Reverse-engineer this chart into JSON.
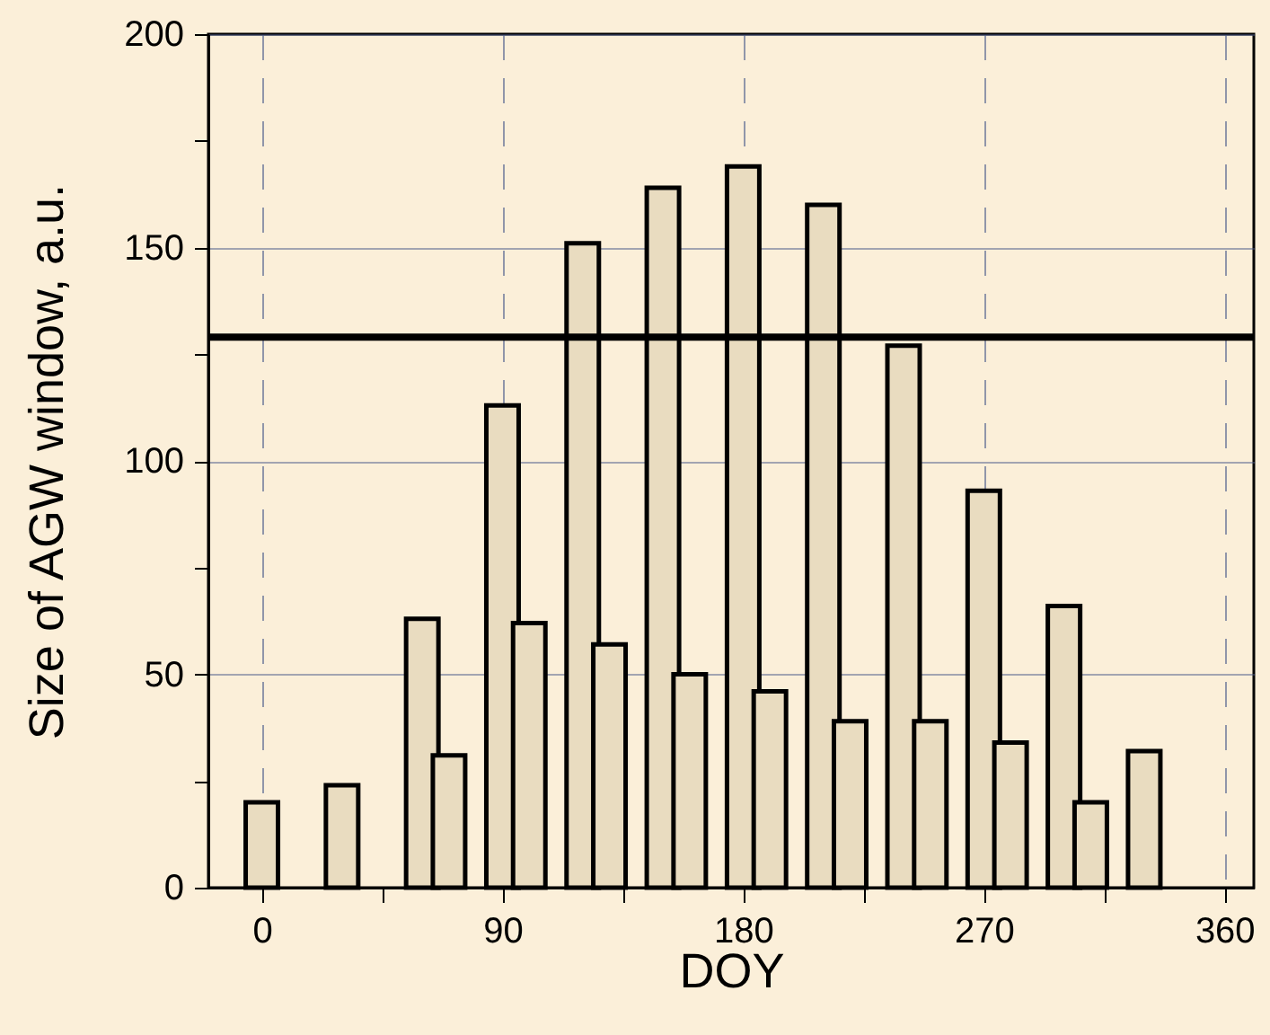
{
  "chart_data": {
    "type": "bar",
    "xlabel": "DOY",
    "ylabel": "Size of AGW window, a.u.",
    "xlim": [
      -20,
      371
    ],
    "xticks": [
      0,
      {
        "value": 45,
        "label": null
      },
      90,
      {
        "value": 135,
        "label": null
      },
      180,
      {
        "value": 225,
        "label": null
      },
      270,
      {
        "value": 315,
        "label": null
      },
      360
    ],
    "ylim": [
      0,
      200
    ],
    "yticks": [
      0,
      {
        "value": 25,
        "label": null
      },
      50,
      {
        "value": 75,
        "label": null
      },
      100,
      {
        "value": 125,
        "label": null
      },
      150,
      {
        "value": 175,
        "label": null
      },
      200
    ],
    "grid": true,
    "series": [
      {
        "color": "#e9dcc0",
        "x": [
          0,
          30,
          60,
          90,
          120,
          150,
          180,
          210,
          240,
          270,
          300,
          330
        ],
        "values": [
          20,
          24,
          63,
          113,
          151,
          164,
          169,
          160,
          127,
          93,
          66,
          32
        ]
      },
      {
        "color": "#e9dcc0",
        "x": [
          70,
          100,
          130,
          160,
          190,
          220,
          250,
          280,
          310
        ],
        "values": [
          31,
          62,
          57,
          50,
          46,
          39,
          39,
          34,
          20
        ]
      }
    ],
    "ref_lines": [
      {
        "axis": "y",
        "value": 129,
        "color": "#000000"
      }
    ]
  }
}
